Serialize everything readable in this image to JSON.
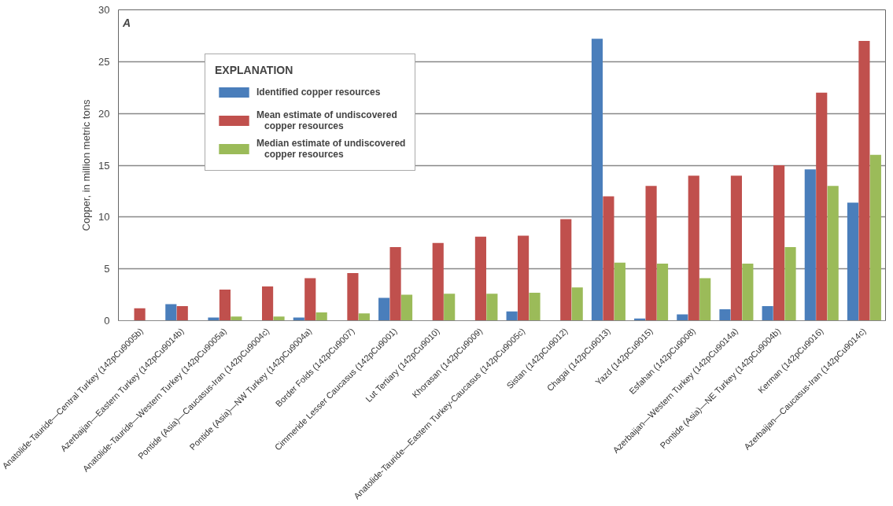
{
  "chart_data": {
    "type": "bar",
    "ylabel": "Copper, in million metric tons",
    "legend_title": "EXPLANATION",
    "annotations": [
      "A"
    ],
    "categories": [
      "Anatolide-Tauride—Central Turkey (142pCu9005b)",
      "Azerbaijan—Eastern Turkey (142pCu9014b)",
      "Anatolide-Tauride—Western Turkey (142pCu9005a)",
      "Pontide (Asia)—Caucasus-Iran (142pCu9004c)",
      "Pontide (Asia)—NW Turkey (142pCu9004a)",
      "Border Folds (142pCu9007)",
      "Cimmeride Lesser Caucasus (142pCu9001)",
      "Lut Tertiary (142pCu9010)",
      "Khorasan (142pCu9009)",
      "Anatolide-Tauride—Eastern Turkey-Caucasus (142pCu9005c)",
      "Sistan (142pCu9012)",
      "Chagai (142pCu9013)",
      "Yazd (142pCu9015)",
      "Esfahan (142pCu9008)",
      "Azerbaijan—Western Turkey (142pCu9014a)",
      "Pontide (Asia)—NE Turkey (142pCu9004b)",
      "Kerman (142pCu9016)",
      "Azerbaijan—Caucasus-Iran (142pCu9014c)"
    ],
    "series": [
      {
        "name": "Identified copper resources",
        "color": "#4a7ebb",
        "values": [
          null,
          1.6,
          0.3,
          null,
          0.3,
          null,
          2.2,
          null,
          null,
          0.9,
          null,
          27.2,
          0.2,
          0.6,
          1.1,
          1.4,
          14.6,
          11.4
        ]
      },
      {
        "name": "Mean estimate of undiscovered copper resources",
        "color": "#c0504d",
        "values": [
          1.2,
          1.4,
          3.0,
          3.3,
          4.1,
          4.6,
          7.1,
          7.5,
          8.1,
          8.2,
          9.8,
          12.0,
          13.0,
          14.0,
          14.0,
          15.0,
          22.0,
          27.0
        ]
      },
      {
        "name": "Median estimate of undiscovered copper resources",
        "color": "#9bbb59",
        "values": [
          null,
          null,
          0.4,
          0.4,
          0.8,
          0.7,
          2.5,
          2.6,
          2.6,
          2.7,
          3.2,
          5.6,
          5.5,
          4.1,
          5.5,
          7.1,
          13.0,
          16.0
        ]
      }
    ],
    "ylim": [
      0,
      30
    ],
    "yticks": [
      0,
      5,
      10,
      15,
      20,
      25,
      30
    ],
    "grid": "y",
    "legend": "top"
  }
}
